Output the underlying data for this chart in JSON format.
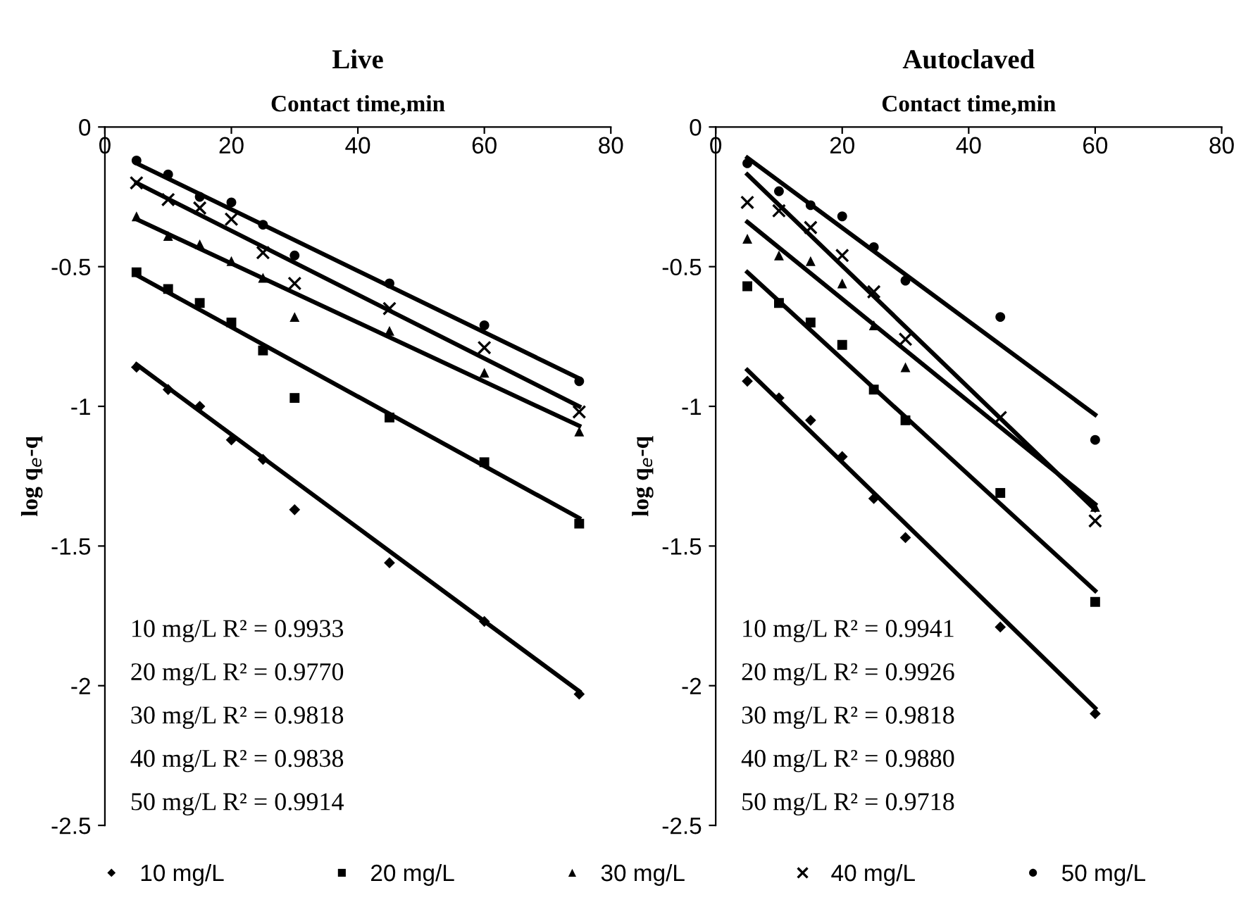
{
  "chart_data": [
    {
      "type": "scatter",
      "title": "Live",
      "xlabel": "Contact time,min",
      "ylabel": "log q$_{e}$-q",
      "xlim": [
        0,
        80
      ],
      "xticks": [
        0,
        20,
        40,
        60,
        80
      ],
      "ylim": [
        -2.5,
        0
      ],
      "yticks": [
        0,
        -0.5,
        -1,
        -1.5,
        -2,
        -2.5
      ],
      "grid": false,
      "legend": "bottom",
      "x": [
        5,
        10,
        15,
        20,
        25,
        30,
        45,
        60,
        75
      ],
      "series": [
        {
          "name": "10 mg/L",
          "color": "#000000",
          "marker": "diamond",
          "values": [
            -0.86,
            -0.94,
            -1.0,
            -1.12,
            -1.19,
            -1.37,
            -1.56,
            -1.77,
            -2.03
          ]
        },
        {
          "name": "20 mg/L",
          "color": "#000000",
          "marker": "square",
          "values": [
            -0.52,
            -0.58,
            -0.63,
            -0.7,
            -0.8,
            -0.97,
            -1.04,
            -1.2,
            -1.42
          ]
        },
        {
          "name": "30 mg/L",
          "color": "#000000",
          "marker": "triangle",
          "values": [
            -0.32,
            -0.39,
            -0.42,
            -0.48,
            -0.54,
            -0.68,
            -0.73,
            -0.88,
            -1.09
          ]
        },
        {
          "name": "40 mg/L",
          "color": "#000000",
          "marker": "cross",
          "values": [
            -0.2,
            -0.26,
            -0.29,
            -0.33,
            -0.45,
            -0.56,
            -0.65,
            -0.79,
            -1.02
          ]
        },
        {
          "name": "50 mg/L",
          "color": "#000000",
          "marker": "circle",
          "values": [
            -0.12,
            -0.17,
            -0.25,
            -0.27,
            -0.35,
            -0.46,
            -0.56,
            -0.71,
            -0.91
          ]
        },
        {
          "type": "line",
          "color": "#000000",
          "x": [
            5,
            75
          ],
          "values": [
            -0.85,
            -2.02
          ]
        },
        {
          "type": "line",
          "color": "#000000",
          "x": [
            5,
            75
          ],
          "values": [
            -0.53,
            -1.4
          ]
        },
        {
          "type": "line",
          "color": "#000000",
          "x": [
            5,
            75
          ],
          "values": [
            -0.33,
            -1.07
          ]
        },
        {
          "type": "line",
          "color": "#000000",
          "x": [
            5,
            75
          ],
          "values": [
            -0.2,
            -1.0
          ]
        },
        {
          "type": "line",
          "color": "#000000",
          "x": [
            5,
            75
          ],
          "values": [
            -0.13,
            -0.9
          ]
        }
      ],
      "annotations": [
        "10 mg/L R² = 0.9933",
        "20 mg/L R² = 0.9770",
        "30 mg/L R² = 0.9818",
        "40 mg/L R² = 0.9838",
        "50 mg/L R² = 0.9914"
      ]
    },
    {
      "type": "scatter",
      "title": "Autoclaved",
      "xlabel": "Contact time,min",
      "ylabel": "log q$_{e}$-q",
      "xlim": [
        0,
        80
      ],
      "xticks": [
        0,
        20,
        40,
        60,
        80
      ],
      "ylim": [
        -2.5,
        0
      ],
      "yticks": [
        0,
        -0.5,
        -1,
        -1.5,
        -2,
        -2.5
      ],
      "grid": false,
      "x": [
        5,
        10,
        15,
        20,
        25,
        30,
        45,
        60
      ],
      "series": [
        {
          "color": "#000000",
          "marker": "diamond",
          "values": [
            -0.91,
            -0.97,
            -1.05,
            -1.18,
            -1.33,
            -1.47,
            -1.79,
            -2.1
          ]
        },
        {
          "color": "#000000",
          "marker": "square",
          "values": [
            -0.57,
            -0.63,
            -0.7,
            -0.78,
            -0.94,
            -1.05,
            -1.31,
            -1.7
          ]
        },
        {
          "color": "#000000",
          "marker": "triangle",
          "values": [
            -0.4,
            -0.46,
            -0.48,
            -0.56,
            -0.71,
            -0.86,
            null,
            -1.36
          ]
        },
        {
          "color": "#000000",
          "marker": "cross",
          "values": [
            -0.27,
            -0.3,
            -0.36,
            -0.46,
            -0.59,
            -0.76,
            -1.04,
            -1.41
          ]
        },
        {
          "color": "#000000",
          "marker": "circle",
          "values": [
            -0.13,
            -0.23,
            -0.28,
            -0.32,
            -0.43,
            -0.55,
            -0.68,
            -1.12
          ]
        },
        {
          "type": "line",
          "color": "#000000",
          "x": [
            5,
            60
          ],
          "values": [
            -0.87,
            -2.08
          ]
        },
        {
          "type": "line",
          "color": "#000000",
          "x": [
            5,
            60
          ],
          "values": [
            -0.52,
            -1.66
          ]
        },
        {
          "type": "line",
          "color": "#000000",
          "x": [
            5,
            60
          ],
          "values": [
            -0.34,
            -1.35
          ]
        },
        {
          "type": "line",
          "color": "#000000",
          "x": [
            5,
            60
          ],
          "values": [
            -0.17,
            -1.37
          ]
        },
        {
          "type": "line",
          "color": "#000000",
          "x": [
            5,
            60
          ],
          "values": [
            -0.11,
            -1.03
          ]
        }
      ],
      "annotations": [
        "10 mg/L R² = 0.9941",
        "20 mg/L R² = 0.9926",
        "30 mg/L R² = 0.9818",
        "40 mg/L R² = 0.9880",
        "50 mg/L R² = 0.9718"
      ]
    }
  ]
}
